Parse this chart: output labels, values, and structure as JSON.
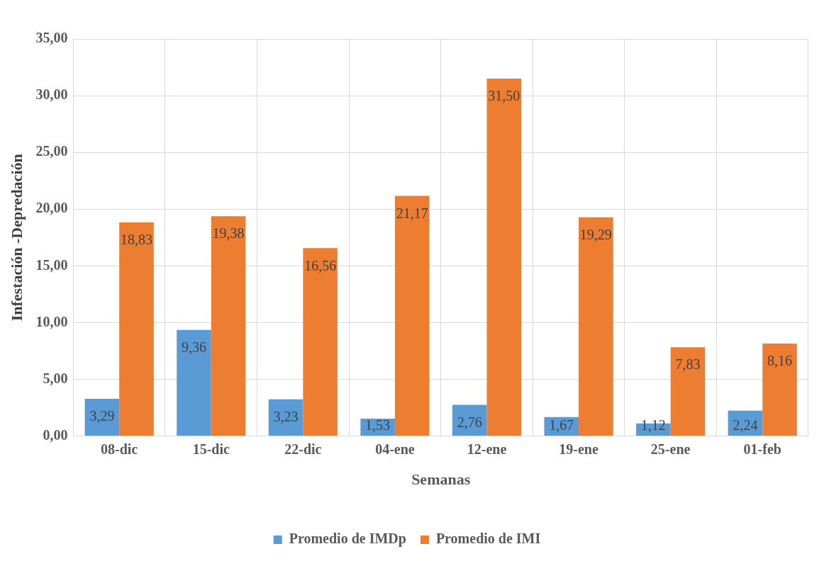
{
  "chart_data": {
    "type": "bar",
    "xlabel": "Semanas",
    "ylabel": "Infestación -Depredación",
    "categories": [
      "08-dic",
      "15-dic",
      "22-dic",
      "04-ene",
      "12-ene",
      "19-ene",
      "25-ene",
      "01-feb"
    ],
    "series": [
      {
        "name": "Promedio de IMDp",
        "color": "#5b9bd5",
        "values": [
          3.29,
          9.36,
          3.23,
          1.53,
          2.76,
          1.67,
          1.12,
          2.24
        ],
        "value_labels": [
          "3,29",
          "9,36",
          "3,23",
          "1,53",
          "2,76",
          "1,67",
          "1,12",
          "2,24"
        ]
      },
      {
        "name": "Promedio de IMI",
        "color": "#ed7d31",
        "values": [
          18.83,
          19.38,
          16.56,
          21.17,
          31.5,
          19.29,
          7.83,
          8.16
        ],
        "value_labels": [
          "18,83",
          "19,38",
          "16,56",
          "21,17",
          "31,50",
          "19,29",
          "7,83",
          "8,16"
        ]
      }
    ],
    "ylim": [
      0,
      35
    ],
    "yticks": [
      {
        "value": 0,
        "label": "0,00"
      },
      {
        "value": 5,
        "label": "5,00"
      },
      {
        "value": 10,
        "label": "10,00"
      },
      {
        "value": 15,
        "label": "15,00"
      },
      {
        "value": 20,
        "label": "20,00"
      },
      {
        "value": 25,
        "label": "25,00"
      },
      {
        "value": 30,
        "label": "30,00"
      },
      {
        "value": 35,
        "label": "35,00"
      }
    ],
    "grid": true,
    "legend": "bottom"
  }
}
